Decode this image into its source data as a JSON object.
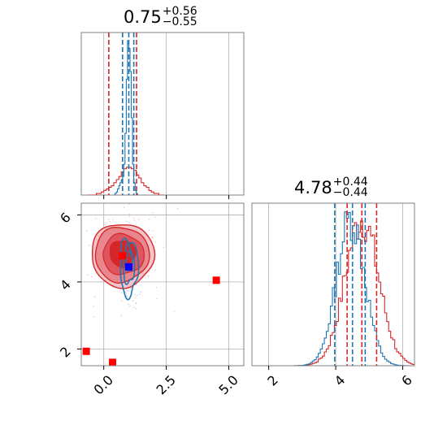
{
  "chart_data": {
    "type": "corner",
    "panels": [
      {
        "panel": "hist-param-1",
        "title": {
          "value": "0.75",
          "upper": "+0.56",
          "lower": "−0.55"
        },
        "xlim": [
          -0.9,
          5.6
        ],
        "x_ticks": [
          "0.0",
          "2.5",
          "5.0"
        ],
        "x_tick_values": [
          0.0,
          2.5,
          5.0
        ],
        "red_quantiles": [
          0.2,
          0.75,
          1.31
        ],
        "blue_quantiles": [
          0.75,
          1.0,
          1.2
        ],
        "red_hist": {
          "bin_edges_start": -0.6,
          "bin_width": 0.1,
          "counts": [
            0,
            0,
            0,
            1,
            1,
            2,
            3,
            4,
            5,
            6,
            8,
            10,
            12,
            15,
            17,
            18,
            18,
            17,
            16,
            13,
            11,
            8,
            6,
            5,
            3,
            2,
            1,
            1,
            0,
            0
          ]
        },
        "blue_hist": {
          "bin_edges_start": 0.4,
          "bin_width": 0.05,
          "counts": [
            0,
            1,
            2,
            4,
            6,
            8,
            10,
            12,
            20,
            40,
            75,
            100,
            95,
            80,
            50,
            20,
            8,
            3,
            1,
            0
          ]
        }
      },
      {
        "panel": "hist-param-2",
        "title": {
          "value": "4.78",
          "upper": "+0.44",
          "lower": "−0.44"
        },
        "xlim": [
          1.5,
          6.35
        ],
        "x_ticks": [
          "2",
          "4",
          "6"
        ],
        "x_tick_values": [
          2,
          4,
          6
        ],
        "red_quantiles": [
          4.34,
          4.78,
          5.22
        ],
        "blue_quantiles": [
          3.97,
          4.5,
          4.88
        ]
      },
      {
        "panel": "joint-2d",
        "xlim": [
          -0.9,
          5.6
        ],
        "ylim": [
          1.5,
          6.35
        ],
        "x_ticks": [
          "0.0",
          "2.5",
          "5.0"
        ],
        "x_tick_values": [
          0.0,
          2.5,
          5.0
        ],
        "y_ticks": [
          "2",
          "4",
          "6"
        ],
        "y_tick_values": [
          2,
          4,
          6
        ],
        "red_markers": [
          {
            "x": 0.75,
            "y": 4.78
          },
          {
            "x": 4.5,
            "y": 4.05
          },
          {
            "x": -0.7,
            "y": 1.93
          },
          {
            "x": 0.35,
            "y": 1.6
          }
        ],
        "blue_markers": [
          {
            "x": 1.0,
            "y": 4.45
          }
        ]
      }
    ],
    "colors": {
      "red": "#d62728",
      "blue": "#1f77b4",
      "grid": "#b0b0b0",
      "spine": "#808080"
    },
    "grid": true
  }
}
